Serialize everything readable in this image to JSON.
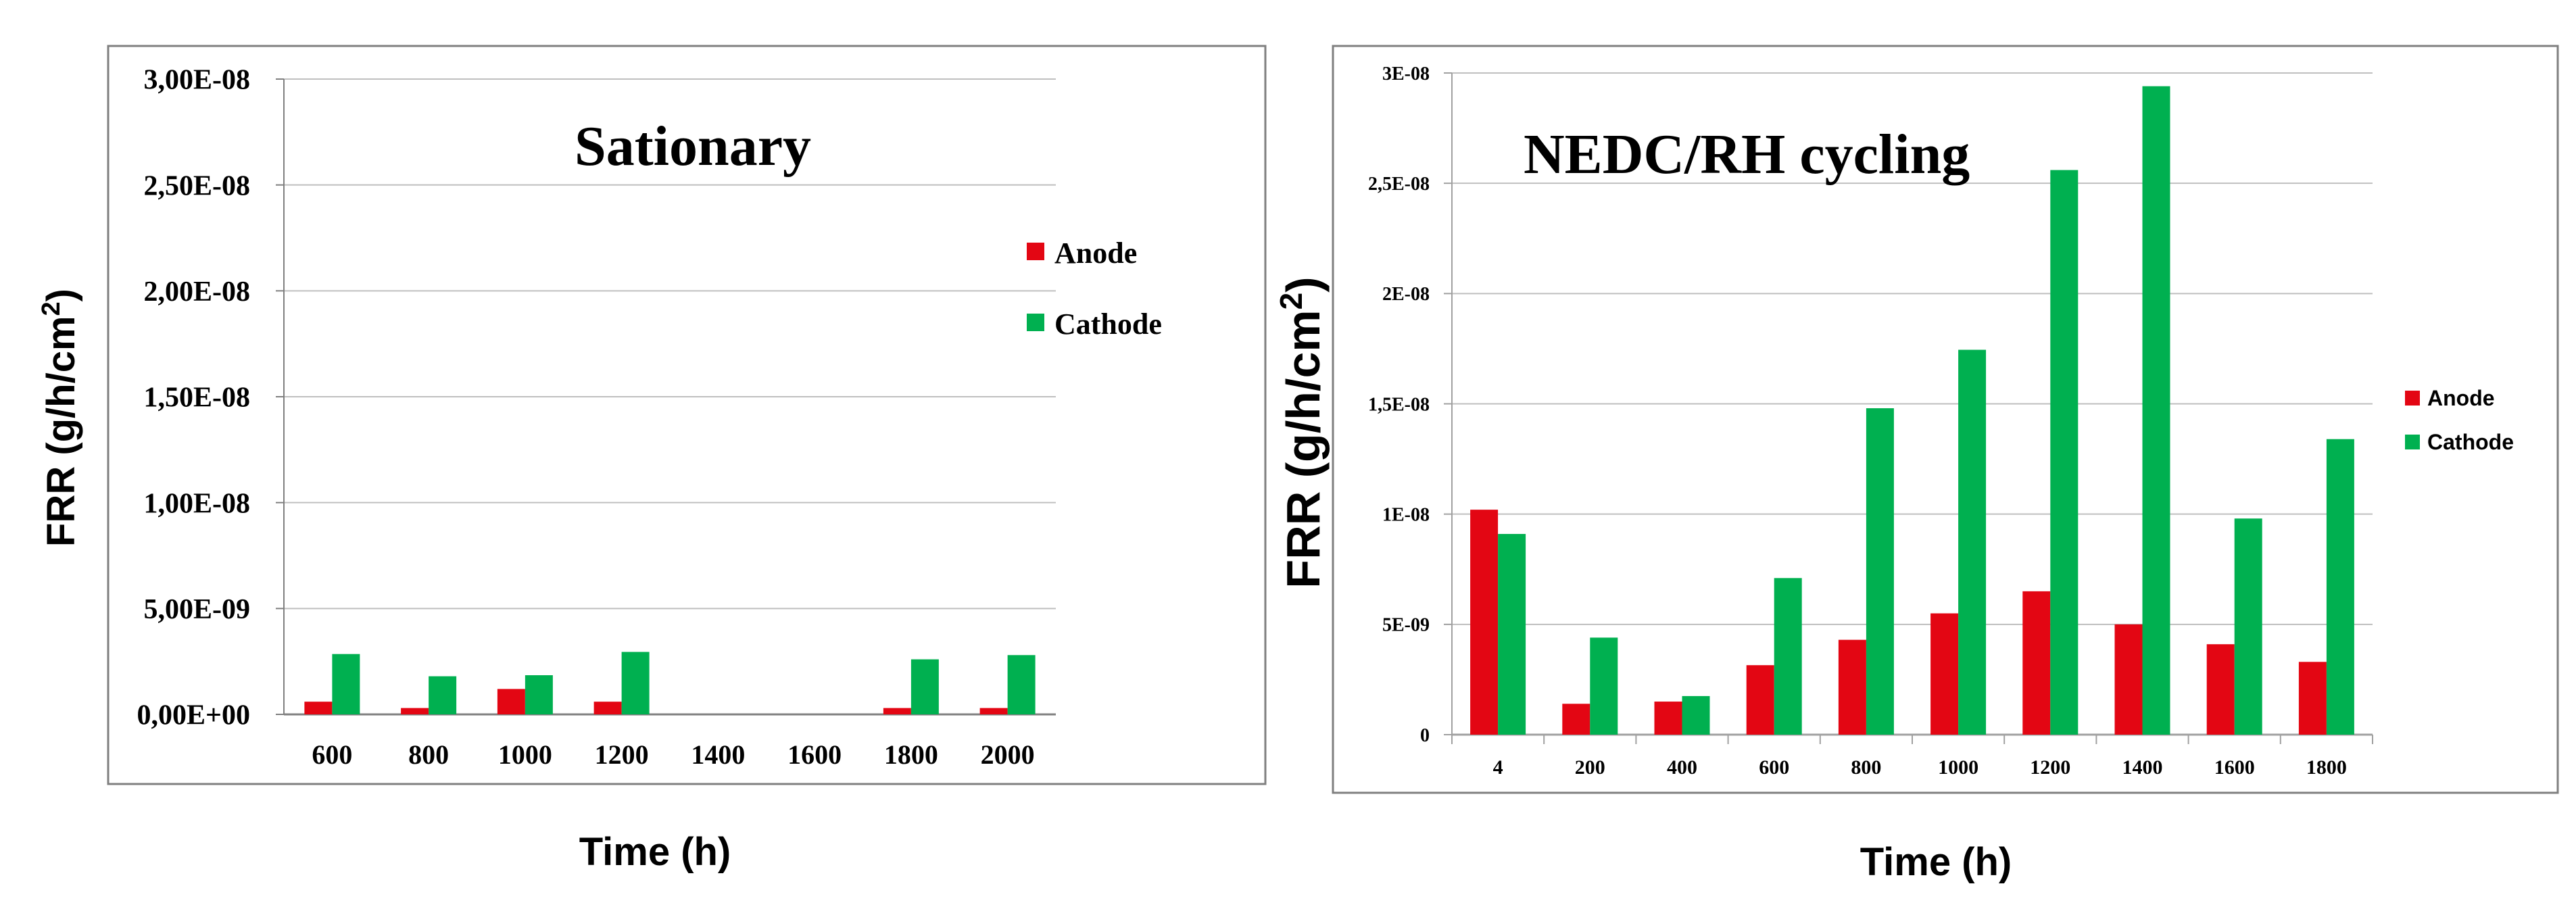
{
  "chart_data": [
    {
      "type": "bar",
      "title": "Sationary",
      "xlabel": "Time (h)",
      "ylabel_main": "FRR (g/h/cm",
      "ylabel_sup": "2",
      "ylabel_end": ")",
      "categories": [
        "600",
        "800",
        "1000",
        "1200",
        "1400",
        "1600",
        "1800",
        "2000"
      ],
      "y_ticks": [
        0,
        5e-09,
        1e-08,
        1.5e-08,
        2e-08,
        2.5e-08,
        3e-08
      ],
      "y_tick_labels": [
        "0,00E+00",
        "5,00E-09",
        "1,00E-08",
        "1,50E-08",
        "2,00E-08",
        "2,50E-08",
        "3,00E-08"
      ],
      "ylim": [
        0,
        3e-08
      ],
      "grid": true,
      "legend_position": "right",
      "series": [
        {
          "name": "Anode",
          "color": "#e30613",
          "values": [
            6e-10,
            3e-10,
            1.2e-09,
            6e-10,
            0,
            0,
            3e-10,
            3e-10
          ]
        },
        {
          "name": "Cathode",
          "color": "#00b050",
          "values": [
            2.85e-09,
            1.8e-09,
            1.85e-09,
            2.95e-09,
            0,
            0,
            2.6e-09,
            2.8e-09
          ]
        }
      ]
    },
    {
      "type": "bar",
      "title": "NEDC/RH cycling",
      "xlabel": "Time (h)",
      "ylabel_main": "FRR (g/h/cm",
      "ylabel_sup": "2",
      "ylabel_end": ")",
      "categories": [
        "4",
        "200",
        "400",
        "600",
        "800",
        "1000",
        "1200",
        "1400",
        "1600",
        "1800"
      ],
      "y_ticks": [
        0,
        5e-09,
        1e-08,
        1.5e-08,
        2e-08,
        2.5e-08,
        3e-08
      ],
      "y_tick_labels": [
        "0",
        "5E-09",
        "1E-08",
        "1,5E-08",
        "2E-08",
        "2,5E-08",
        "3E-08"
      ],
      "ylim": [
        0,
        3e-08
      ],
      "grid": true,
      "legend_position": "right",
      "series": [
        {
          "name": "Anode",
          "color": "#e30613",
          "values": [
            1.02e-08,
            1.4e-09,
            1.5e-09,
            3.15e-09,
            4.3e-09,
            5.5e-09,
            6.5e-09,
            5e-09,
            4.1e-09,
            3.3e-09
          ]
        },
        {
          "name": "Cathode",
          "color": "#00b050",
          "values": [
            9.1e-09,
            4.4e-09,
            1.75e-09,
            7.1e-09,
            1.48e-08,
            1.745e-08,
            2.56e-08,
            2.94e-08,
            9.8e-09,
            1.34e-08
          ]
        }
      ]
    }
  ]
}
